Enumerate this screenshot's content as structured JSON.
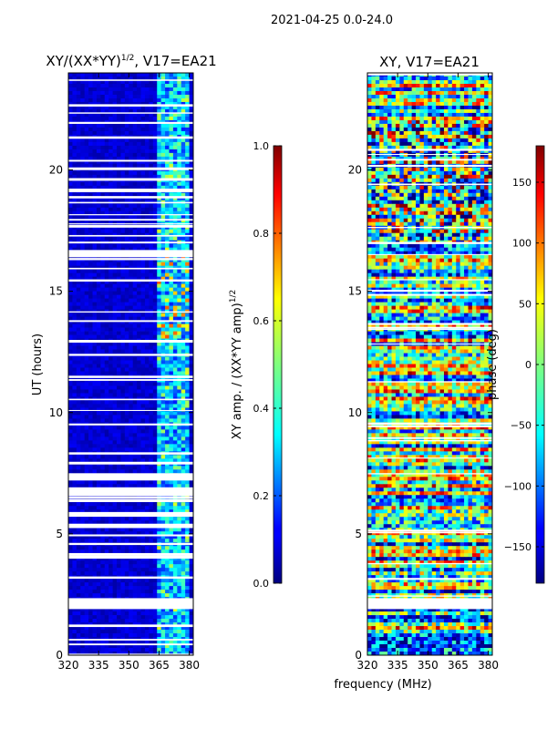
{
  "suptitle": "2021-04-25 0.0-24.0",
  "xlabel_shared": "frequency (MHz)",
  "chart_data": [
    {
      "type": "heatmap",
      "title_main": "XY/(XX*YY)",
      "title_exp": "1/2",
      "title_suffix": ", V17=EA21",
      "xlim": [
        320,
        382
      ],
      "ylim": [
        0,
        24
      ],
      "x_ticks": [
        320,
        335,
        350,
        365,
        380
      ],
      "x_tick_labels": [
        "320",
        "335",
        "350",
        "365",
        "380"
      ],
      "y_ticks": [
        0,
        5,
        10,
        15,
        20
      ],
      "y_tick_labels": [
        "0",
        "5",
        "10",
        "15",
        "20"
      ],
      "ylabel": "UT (hours)",
      "colorbar": {
        "label_main": "XY amp. / (XX*YY amp)",
        "label_exp": "1/2",
        "range": [
          0.0,
          1.0
        ],
        "ticks": [
          0.0,
          0.2,
          0.4,
          0.6,
          0.8,
          1.0
        ],
        "tick_labels": [
          "0.0",
          "0.2",
          "0.4",
          "0.6",
          "0.8",
          "1.0"
        ],
        "colormap": "jet"
      },
      "blank_intervals_hours": [
        [
          1.9,
          2.35
        ],
        [
          6.6,
          6.9
        ],
        [
          7.2,
          7.5
        ],
        [
          16.4,
          16.7
        ]
      ]
    },
    {
      "type": "heatmap",
      "title": "XY, V17=EA21",
      "xlim": [
        320,
        382
      ],
      "ylim": [
        0,
        24
      ],
      "x_ticks": [
        320,
        335,
        350,
        365,
        380
      ],
      "x_tick_labels": [
        "320",
        "335",
        "350",
        "365",
        "380"
      ],
      "y_ticks": [
        0,
        5,
        10,
        15,
        20
      ],
      "y_tick_labels": [
        "0",
        "5",
        "10",
        "15",
        "20"
      ],
      "colorbar": {
        "label": "phase (deg)",
        "range": [
          -180,
          180
        ],
        "ticks": [
          -150,
          -100,
          -50,
          0,
          50,
          100,
          150
        ],
        "tick_labels": [
          "−150",
          "−100",
          "−50",
          "0",
          "50",
          "100",
          "150"
        ],
        "colormap": "jet"
      },
      "blank_intervals_hours": [
        [
          1.9,
          2.35
        ]
      ]
    }
  ],
  "colors": {
    "jet": [
      "#00007f",
      "#0000ff",
      "#007fff",
      "#00ffff",
      "#7fff7f",
      "#ffff00",
      "#ff7f00",
      "#ff0000",
      "#7f0000"
    ]
  }
}
